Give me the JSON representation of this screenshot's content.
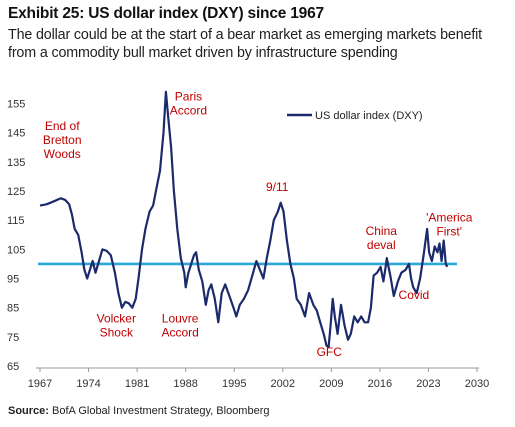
{
  "header": {
    "title": "Exhibit 25: US dollar index (DXY) since 1967",
    "subtitle": "The dollar could be at the start of a bear market as emerging markets benefit from a commodity bull market driven by infrastructure spending"
  },
  "footer": {
    "source_label": "Source:",
    "source_text": " BofA Global Investment Strategy, Bloomberg"
  },
  "colors": {
    "series": "#1b2a6b",
    "reference_line": "#29a9d8",
    "annotation": "#c00000"
  },
  "chart_data": {
    "type": "line",
    "title": "Exhibit 25: US dollar index (DXY) since 1967",
    "xlabel": "",
    "ylabel": "",
    "xlim": [
      1967,
      2030
    ],
    "ylim": [
      65,
      160
    ],
    "x_ticks": [
      1967,
      1974,
      1981,
      1988,
      1995,
      2002,
      2009,
      2016,
      2023,
      2030
    ],
    "y_ticks": [
      65,
      75,
      85,
      95,
      105,
      115,
      125,
      135,
      145,
      155
    ],
    "legend": {
      "position": "top-right"
    },
    "reference_line": {
      "y": 100
    },
    "series": [
      {
        "name": "US dollar index (DXY)",
        "points": [
          [
            1967.0,
            120
          ],
          [
            1968.0,
            120.5
          ],
          [
            1969.0,
            121.5
          ],
          [
            1970.0,
            122.5
          ],
          [
            1970.6,
            122
          ],
          [
            1971.2,
            120.5
          ],
          [
            1971.6,
            117
          ],
          [
            1972.0,
            112
          ],
          [
            1972.5,
            110
          ],
          [
            1973.0,
            104
          ],
          [
            1973.4,
            98
          ],
          [
            1973.8,
            95
          ],
          [
            1974.2,
            98
          ],
          [
            1974.6,
            101
          ],
          [
            1975.0,
            97
          ],
          [
            1975.5,
            101
          ],
          [
            1976.0,
            105
          ],
          [
            1976.6,
            104.5
          ],
          [
            1977.2,
            103
          ],
          [
            1977.8,
            97
          ],
          [
            1978.3,
            90
          ],
          [
            1978.8,
            85
          ],
          [
            1979.3,
            87
          ],
          [
            1979.8,
            86.5
          ],
          [
            1980.3,
            85
          ],
          [
            1980.8,
            88
          ],
          [
            1981.2,
            95
          ],
          [
            1981.7,
            105
          ],
          [
            1982.2,
            112
          ],
          [
            1982.8,
            118
          ],
          [
            1983.3,
            120
          ],
          [
            1983.8,
            126
          ],
          [
            1984.3,
            132
          ],
          [
            1984.8,
            145
          ],
          [
            1985.15,
            159
          ],
          [
            1985.5,
            150
          ],
          [
            1985.9,
            140
          ],
          [
            1986.3,
            125
          ],
          [
            1986.8,
            112
          ],
          [
            1987.3,
            102
          ],
          [
            1987.8,
            97
          ],
          [
            1988.0,
            92
          ],
          [
            1988.4,
            97
          ],
          [
            1988.8,
            100
          ],
          [
            1989.2,
            103
          ],
          [
            1989.5,
            104
          ],
          [
            1989.9,
            98
          ],
          [
            1990.4,
            94
          ],
          [
            1990.9,
            86
          ],
          [
            1991.3,
            91
          ],
          [
            1991.7,
            93
          ],
          [
            1992.2,
            88
          ],
          [
            1992.7,
            80
          ],
          [
            1993.2,
            90
          ],
          [
            1993.7,
            93
          ],
          [
            1994.3,
            89
          ],
          [
            1994.9,
            85
          ],
          [
            1995.3,
            82
          ],
          [
            1995.8,
            86
          ],
          [
            1996.4,
            88
          ],
          [
            1997.0,
            91
          ],
          [
            1997.6,
            96
          ],
          [
            1998.2,
            101
          ],
          [
            1998.7,
            98
          ],
          [
            1999.2,
            95
          ],
          [
            1999.7,
            102
          ],
          [
            2000.2,
            108
          ],
          [
            2000.7,
            115
          ],
          [
            2001.3,
            118
          ],
          [
            2001.7,
            121
          ],
          [
            2002.1,
            118
          ],
          [
            2002.6,
            108
          ],
          [
            2003.1,
            100
          ],
          [
            2003.6,
            95
          ],
          [
            2004.0,
            88
          ],
          [
            2004.6,
            86
          ],
          [
            2005.2,
            82
          ],
          [
            2005.8,
            90
          ],
          [
            2006.4,
            86
          ],
          [
            2006.9,
            84
          ],
          [
            2007.4,
            80
          ],
          [
            2007.9,
            76
          ],
          [
            2008.3,
            72
          ],
          [
            2008.6,
            71.5
          ],
          [
            2008.9,
            79
          ],
          [
            2009.2,
            88
          ],
          [
            2009.5,
            82
          ],
          [
            2009.9,
            76
          ],
          [
            2010.4,
            86
          ],
          [
            2010.9,
            79
          ],
          [
            2011.4,
            74
          ],
          [
            2011.8,
            76
          ],
          [
            2012.3,
            82
          ],
          [
            2012.8,
            80
          ],
          [
            2013.3,
            82
          ],
          [
            2013.8,
            80
          ],
          [
            2014.3,
            80
          ],
          [
            2014.7,
            85
          ],
          [
            2015.1,
            96
          ],
          [
            2015.6,
            97
          ],
          [
            2016.1,
            99
          ],
          [
            2016.5,
            94
          ],
          [
            2016.9,
            100
          ],
          [
            2017.0,
            102
          ],
          [
            2017.5,
            96
          ],
          [
            2018.0,
            89
          ],
          [
            2018.6,
            94
          ],
          [
            2019.1,
            97
          ],
          [
            2019.7,
            98
          ],
          [
            2020.2,
            100
          ],
          [
            2020.5,
            95
          ],
          [
            2020.8,
            92
          ],
          [
            2021.3,
            90
          ],
          [
            2021.8,
            95
          ],
          [
            2022.3,
            103
          ],
          [
            2022.8,
            112
          ],
          [
            2023.1,
            104
          ],
          [
            2023.5,
            101
          ],
          [
            2023.9,
            106
          ],
          [
            2024.3,
            104
          ],
          [
            2024.6,
            107
          ],
          [
            2024.9,
            101
          ],
          [
            2025.2,
            108
          ],
          [
            2025.5,
            100
          ],
          [
            2025.7,
            99
          ]
        ]
      }
    ],
    "annotations": [
      {
        "lines": [
          "End of",
          "Bretton",
          "Woods"
        ],
        "x": 1970.2,
        "y": 146
      },
      {
        "lines": [
          "Volcker",
          "Shock"
        ],
        "x": 1978.0,
        "y": 80
      },
      {
        "lines": [
          "Paris",
          "Accord"
        ],
        "x": 1988.4,
        "y": 156
      },
      {
        "lines": [
          "Louvre",
          "Accord"
        ],
        "x": 1987.2,
        "y": 80
      },
      {
        "lines": [
          "9/11"
        ],
        "x": 2001.2,
        "y": 125
      },
      {
        "lines": [
          "GFC"
        ],
        "x": 2008.7,
        "y": 68.5
      },
      {
        "lines": [
          "China",
          "deval"
        ],
        "x": 2016.2,
        "y": 110
      },
      {
        "lines": [
          "Covid"
        ],
        "x": 2020.9,
        "y": 88
      },
      {
        "lines": [
          "'America",
          "First'"
        ],
        "x": 2026.0,
        "y": 114.5
      }
    ]
  }
}
